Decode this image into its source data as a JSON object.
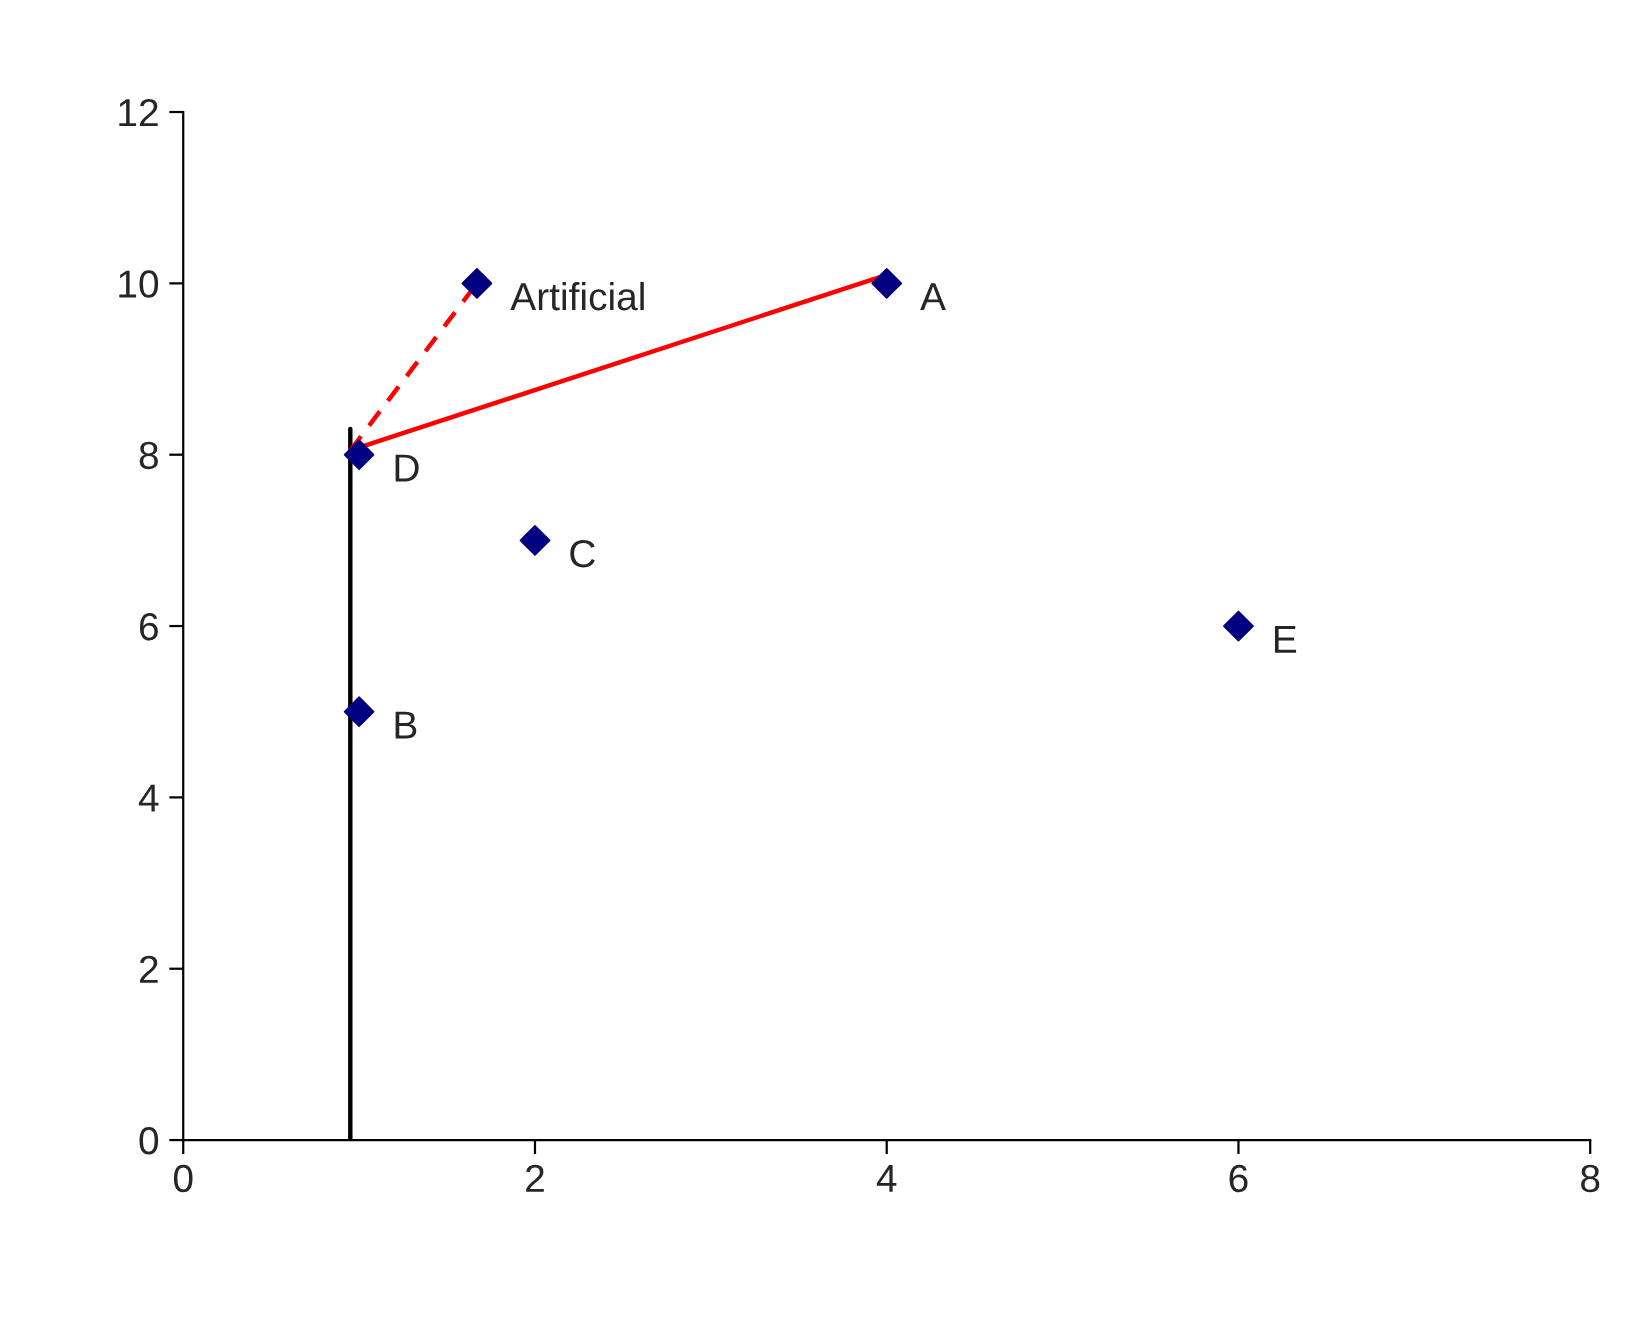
{
  "chart_data": {
    "type": "scatter",
    "series": [
      {
        "type": "line",
        "color": "#000000",
        "line_style": "solid",
        "x": [
          0.95,
          0.95
        ],
        "values": [
          0,
          8.3
        ]
      },
      {
        "type": "line",
        "color": "#ff0000",
        "line_style": "solid",
        "x": [
          0.95,
          4
        ],
        "values": [
          8.05,
          10.1
        ]
      },
      {
        "type": "line",
        "color": "#ff0000",
        "line_style": "dashed",
        "x": [
          0.95,
          1.67
        ],
        "values": [
          8.05,
          10
        ]
      },
      {
        "color": "#000080",
        "marker": "diamond",
        "x": [
          1.67,
          4,
          1,
          2,
          1,
          6
        ],
        "values": [
          10,
          10,
          5,
          7,
          8,
          6
        ]
      }
    ],
    "annotations": [
      {
        "text": "Artificial",
        "x": 1.67,
        "y": 10
      },
      {
        "text": "A",
        "x": 4,
        "y": 10
      },
      {
        "text": "B",
        "x": 1,
        "y": 5
      },
      {
        "text": "C",
        "x": 2,
        "y": 7
      },
      {
        "text": "D",
        "x": 1,
        "y": 8
      },
      {
        "text": "E",
        "x": 6,
        "y": 6
      }
    ],
    "xlim": [
      0,
      8
    ],
    "xticks": [
      0,
      2,
      4,
      6,
      8
    ],
    "ylim": [
      0,
      12
    ],
    "yticks": [
      0,
      2,
      4,
      6,
      8,
      10,
      12
    ],
    "grid": false,
    "legend": false
  }
}
